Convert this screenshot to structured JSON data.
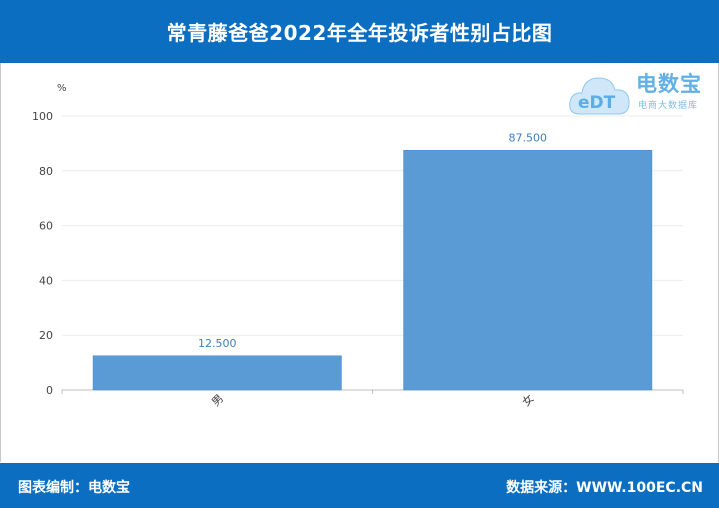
{
  "header": {
    "title": "常青藤爸爸2022年全年投诉者性别占比图"
  },
  "logo": {
    "brand": "电数宝",
    "subtitle": "电商大数据库",
    "mark": "eDT"
  },
  "footer": {
    "left": "图表编制：电数宝",
    "right": "数据来源：WWW.100EC.CN"
  },
  "chart_data": {
    "type": "bar",
    "title": "常青藤爸爸2022年全年投诉者性别占比图",
    "xlabel": "",
    "ylabel": "%",
    "categories": [
      "男",
      "女"
    ],
    "values": [
      12.5,
      87.5
    ],
    "value_labels": [
      "12.500",
      "87.500"
    ],
    "ylim": [
      0,
      100
    ],
    "yticks": [
      0,
      20,
      40,
      60,
      80,
      100
    ],
    "grid": true,
    "legend": "none",
    "bar_color": "#5b9bd5",
    "label_color": "#3d7fc1"
  }
}
